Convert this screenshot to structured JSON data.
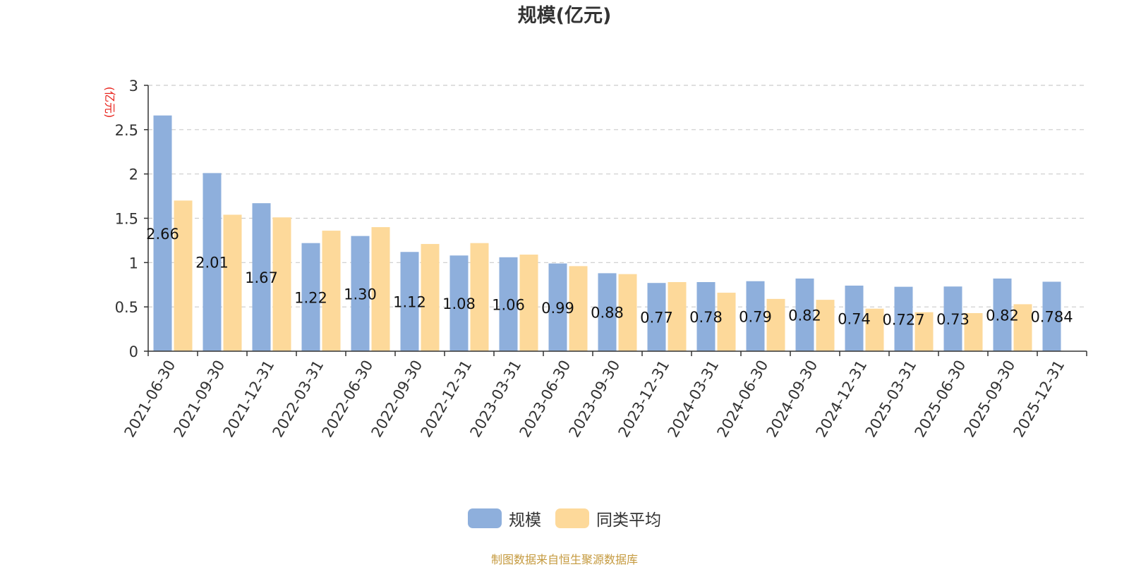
{
  "title": "规模(亿元)",
  "source": "制图数据来自恒生聚源数据库",
  "colors": {
    "scale": "#8eafdc",
    "average": "#fdd99a",
    "axis": "#333333",
    "grid": "#cccccc",
    "unit": "#e8211a",
    "source": "#c59a3f"
  },
  "chart_data": {
    "type": "bar",
    "title": "规模(亿元)",
    "ylabel": "(亿元)",
    "xlabel": "",
    "ylim": [
      0,
      3
    ],
    "yticks": [
      "0",
      "0.5",
      "1",
      "1.5",
      "2",
      "2.5",
      "3"
    ],
    "grid": true,
    "legend_position": "bottom-center",
    "categories": [
      "2021-06-30",
      "2021-09-30",
      "2021-12-31",
      "2022-03-31",
      "2022-06-30",
      "2022-09-30",
      "2022-12-31",
      "2023-03-31",
      "2023-06-30",
      "2023-09-30",
      "2023-12-31",
      "2024-03-31",
      "2024-06-30",
      "2024-09-30",
      "2024-12-31",
      "2025-03-31",
      "2025-06-30",
      "2025-09-30",
      "2025-12-31"
    ],
    "series": [
      {
        "name": "规模",
        "color": "#8eafdc",
        "values": [
          2.66,
          2.01,
          1.67,
          1.22,
          1.3,
          1.12,
          1.08,
          1.06,
          0.99,
          0.88,
          0.77,
          0.78,
          0.79,
          0.82,
          0.74,
          0.727,
          0.73,
          0.82,
          0.784
        ],
        "labels": [
          "2.66",
          "2.01",
          "1.67",
          "1.22",
          "1.30",
          "1.12",
          "1.08",
          "1.06",
          "0.99",
          "0.88",
          "0.77",
          "0.78",
          "0.79",
          "0.82",
          "0.74",
          "0.727",
          "0.73",
          "0.82",
          "0.784"
        ]
      },
      {
        "name": "同类平均",
        "color": "#fdd99a",
        "values": [
          1.7,
          1.54,
          1.51,
          1.36,
          1.4,
          1.21,
          1.22,
          1.09,
          0.96,
          0.87,
          0.78,
          0.66,
          0.59,
          0.58,
          0.48,
          0.44,
          0.43,
          0.53,
          null
        ]
      }
    ]
  }
}
